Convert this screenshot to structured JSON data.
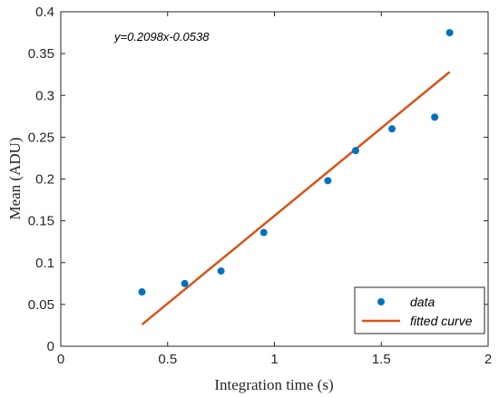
{
  "chart_data": {
    "type": "scatter",
    "xlabel": "Integration time (s)",
    "ylabel": "Mean (ADU)",
    "xlim": [
      0,
      2
    ],
    "ylim": [
      0,
      0.4
    ],
    "x_ticks": [
      "0",
      "0.5",
      "1",
      "1.5",
      "2"
    ],
    "y_ticks": [
      "0",
      "0.05",
      "0.1",
      "0.15",
      "0.2",
      "0.25",
      "0.3",
      "0.35",
      "0.4"
    ],
    "annotation": "y=0.2098x-0.0538",
    "legend_position": "bottom-right",
    "series": [
      {
        "name": "data",
        "kind": "scatter",
        "color": "#0072BD",
        "x": [
          0.38,
          0.58,
          0.75,
          0.95,
          1.25,
          1.38,
          1.55,
          1.75,
          1.82
        ],
        "y": [
          0.065,
          0.075,
          0.09,
          0.136,
          0.198,
          0.234,
          0.26,
          0.274,
          0.375
        ]
      },
      {
        "name": "fitted curve",
        "kind": "line",
        "color": "#D95319",
        "slope": 0.2098,
        "intercept": -0.0538,
        "x_range": [
          0.38,
          1.82
        ]
      }
    ]
  }
}
